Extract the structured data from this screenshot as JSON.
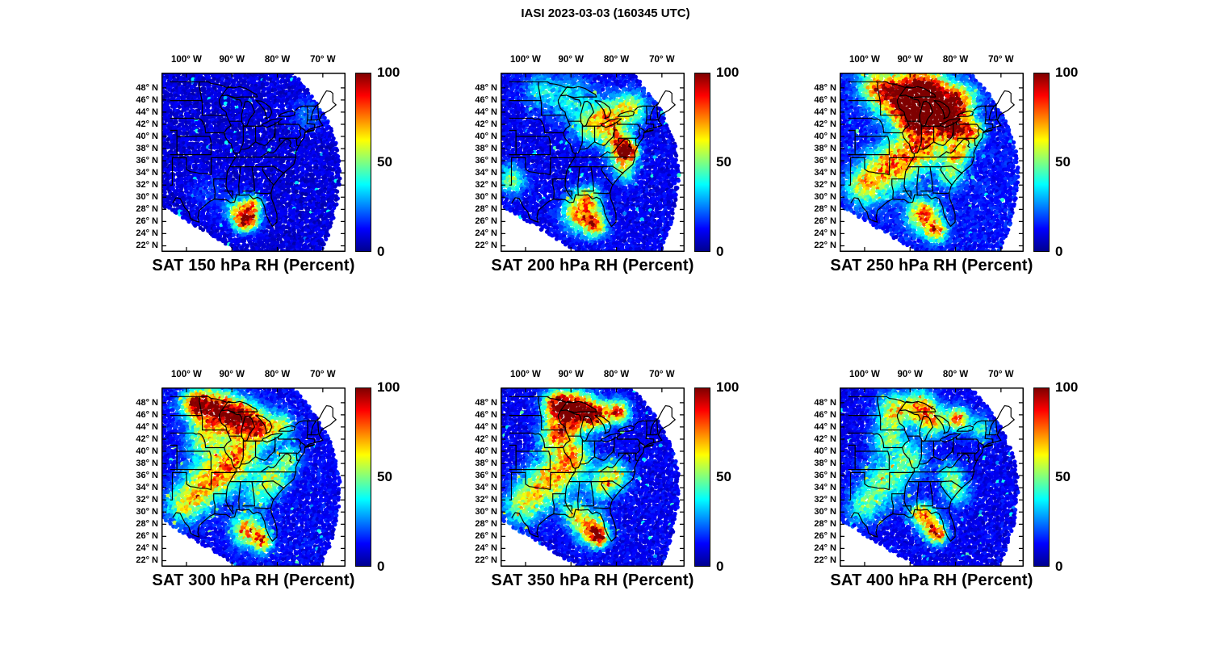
{
  "figure_title": "IASI 2023-03-03 (160345 UTC)",
  "colorbar": {
    "labels": [
      "100",
      "50",
      "0"
    ],
    "min": 0,
    "max": 100,
    "colormap": "jet"
  },
  "chart_data": {
    "type": "scatter",
    "subtype": "satellite-swath-map",
    "title": "IASI 2023-03-03 (160345 UTC)",
    "instrument": "IASI",
    "date": "2023-03-03",
    "time_utc": "160345",
    "variable": "Relative Humidity (Percent)",
    "color_range": [
      0,
      100
    ],
    "lon_tick_labels": [
      "100° W",
      "90° W",
      "80° W",
      "70° W"
    ],
    "lon_tick_values": [
      -100,
      -90,
      -80,
      -70
    ],
    "lat_tick_labels": [
      "48° N",
      "46° N",
      "44° N",
      "42° N",
      "40° N",
      "38° N",
      "36° N",
      "34° N",
      "32° N",
      "30° N",
      "28° N",
      "26° N",
      "24° N",
      "22° N"
    ],
    "lat_tick_values": [
      48,
      46,
      44,
      42,
      40,
      38,
      36,
      34,
      32,
      30,
      28,
      26,
      24,
      22
    ],
    "lon_range": [
      -105.5,
      -65
    ],
    "lat_range": [
      21,
      50.5
    ],
    "grid": false,
    "legend_position": "colorbar-right",
    "high_rh_region_format": [
      "lat_deg_n",
      "lon_deg_e",
      "sigma_deg",
      "peak_rh_percent"
    ],
    "panels": [
      {
        "level_hPa": 150,
        "title": "SAT 150 hPa RH (Percent)",
        "base_rh_percent": 9,
        "high_rh_regions": [
          [
            27.5,
            -88.0,
            1.6,
            60
          ],
          [
            26.3,
            -85.8,
            1.2,
            50
          ],
          [
            28.8,
            -84.8,
            1.0,
            40
          ],
          [
            25.5,
            -87.5,
            1.0,
            35
          ],
          [
            43.5,
            -73.5,
            2.0,
            14
          ],
          [
            30.5,
            -95.0,
            2.0,
            10
          ]
        ]
      },
      {
        "level_hPa": 200,
        "title": "SAT 200 hPa RH (Percent)",
        "base_rh_percent": 11,
        "high_rh_regions": [
          [
            43.0,
            -81.5,
            2.2,
            48
          ],
          [
            44.6,
            -76.5,
            1.8,
            42
          ],
          [
            41.5,
            -85.5,
            2.0,
            38
          ],
          [
            46.0,
            -90.0,
            2.5,
            26
          ],
          [
            37.6,
            -77.3,
            1.1,
            88
          ],
          [
            38.9,
            -79.5,
            1.5,
            52
          ],
          [
            36.2,
            -79.0,
            1.5,
            36
          ],
          [
            33.8,
            -78.0,
            1.2,
            30
          ],
          [
            27.4,
            -88.0,
            2.0,
            62
          ],
          [
            25.4,
            -84.6,
            1.4,
            58
          ],
          [
            30.0,
            -86.0,
            1.4,
            40
          ],
          [
            32.8,
            -103.0,
            1.6,
            42
          ],
          [
            47.5,
            -96.5,
            2.0,
            24
          ]
        ]
      },
      {
        "level_hPa": 250,
        "title": "SAT 250 hPa RH (Percent)",
        "base_rh_percent": 14,
        "high_rh_regions": [
          [
            46.2,
            -92.0,
            2.6,
            82
          ],
          [
            47.2,
            -87.0,
            2.4,
            88
          ],
          [
            44.6,
            -84.0,
            2.4,
            86
          ],
          [
            42.6,
            -88.5,
            2.0,
            66
          ],
          [
            45.6,
            -79.0,
            2.0,
            58
          ],
          [
            41.6,
            -81.0,
            1.5,
            82
          ],
          [
            40.6,
            -76.5,
            1.4,
            68
          ],
          [
            38.2,
            -86.0,
            2.0,
            46
          ],
          [
            36.6,
            -91.0,
            2.5,
            52
          ],
          [
            34.0,
            -96.0,
            2.5,
            46
          ],
          [
            31.6,
            -100.2,
            2.0,
            42
          ],
          [
            37.2,
            -79.5,
            1.5,
            56
          ],
          [
            27.0,
            -87.0,
            1.8,
            68
          ],
          [
            24.4,
            -84.2,
            1.2,
            62
          ],
          [
            33.6,
            -81.0,
            1.5,
            36
          ],
          [
            48.2,
            -97.5,
            2.0,
            52
          ]
        ]
      },
      {
        "level_hPa": 300,
        "title": "SAT 300 hPa RH (Percent)",
        "base_rh_percent": 12,
        "high_rh_regions": [
          [
            47.6,
            -97.5,
            1.8,
            82
          ],
          [
            46.6,
            -92.5,
            2.2,
            82
          ],
          [
            45.0,
            -87.5,
            2.0,
            78
          ],
          [
            43.6,
            -83.5,
            1.8,
            56
          ],
          [
            42.0,
            -96.0,
            2.0,
            42
          ],
          [
            39.6,
            -87.5,
            2.0,
            46
          ],
          [
            37.0,
            -91.5,
            2.5,
            52
          ],
          [
            34.0,
            -96.5,
            2.5,
            46
          ],
          [
            31.0,
            -100.5,
            2.0,
            42
          ],
          [
            35.6,
            -81.0,
            1.8,
            42
          ],
          [
            33.0,
            -84.0,
            1.5,
            32
          ],
          [
            27.0,
            -86.5,
            1.8,
            62
          ],
          [
            25.0,
            -83.2,
            1.2,
            56
          ],
          [
            38.6,
            -77.5,
            1.5,
            36
          ],
          [
            44.0,
            -79.0,
            1.5,
            40
          ]
        ]
      },
      {
        "level_hPa": 350,
        "title": "SAT 350 hPa RH (Percent)",
        "base_rh_percent": 11,
        "high_rh_regions": [
          [
            47.6,
            -93.0,
            1.6,
            88
          ],
          [
            47.0,
            -88.5,
            1.8,
            86
          ],
          [
            45.8,
            -84.5,
            1.6,
            78
          ],
          [
            44.0,
            -91.0,
            1.8,
            52
          ],
          [
            42.4,
            -94.0,
            1.8,
            42
          ],
          [
            39.0,
            -89.0,
            2.0,
            42
          ],
          [
            36.6,
            -92.5,
            2.5,
            46
          ],
          [
            33.6,
            -97.0,
            2.5,
            44
          ],
          [
            30.6,
            -101.0,
            2.0,
            36
          ],
          [
            36.0,
            -80.5,
            1.8,
            46
          ],
          [
            34.0,
            -83.5,
            1.5,
            36
          ],
          [
            27.2,
            -85.5,
            1.8,
            62
          ],
          [
            25.8,
            -83.8,
            1.0,
            82
          ],
          [
            29.6,
            -89.0,
            1.4,
            46
          ],
          [
            46.4,
            -79.5,
            1.3,
            70
          ]
        ]
      },
      {
        "level_hPa": 400,
        "title": "SAT 400 hPa RH (Percent)",
        "base_rh_percent": 11,
        "high_rh_regions": [
          [
            46.6,
            -93.5,
            2.0,
            52
          ],
          [
            47.2,
            -87.5,
            1.8,
            56
          ],
          [
            44.6,
            -85.0,
            1.6,
            48
          ],
          [
            45.2,
            -79.5,
            1.3,
            68
          ],
          [
            42.0,
            -95.0,
            1.8,
            36
          ],
          [
            38.6,
            -90.0,
            2.0,
            36
          ],
          [
            35.0,
            -95.5,
            2.5,
            40
          ],
          [
            31.0,
            -100.0,
            2.0,
            34
          ],
          [
            36.0,
            -81.0,
            1.5,
            36
          ],
          [
            29.6,
            -87.5,
            1.3,
            68
          ],
          [
            27.4,
            -85.0,
            1.3,
            62
          ],
          [
            26.0,
            -83.5,
            1.0,
            52
          ],
          [
            33.0,
            -79.5,
            1.5,
            32
          ],
          [
            43.6,
            -74.5,
            1.5,
            30
          ]
        ]
      }
    ]
  }
}
